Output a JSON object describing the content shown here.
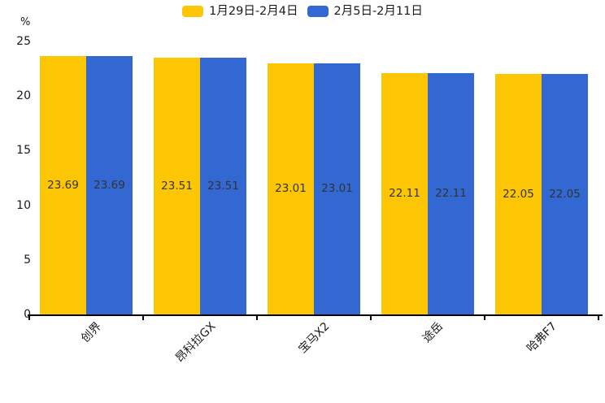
{
  "chart_data": {
    "type": "bar",
    "title": "",
    "unit_label": "%",
    "categories": [
      "创界",
      "昂科拉GX",
      "宝马X2",
      "途岳",
      "哈弗F7"
    ],
    "series": [
      {
        "name": "1月29日-2月4日",
        "color": "#FDC605",
        "values": [
          23.69,
          23.51,
          23.01,
          22.11,
          22.05
        ]
      },
      {
        "name": "2月5日-2月11日",
        "color": "#3367D1",
        "values": [
          23.69,
          23.51,
          23.01,
          22.11,
          22.05
        ]
      }
    ],
    "ylim": [
      0,
      25
    ],
    "yticks": [
      0,
      5,
      10,
      15,
      20,
      25
    ],
    "grid": false,
    "legend_position": "top-center",
    "value_labels_shown": true,
    "value_label_color": "#333333",
    "axis_color": "#000000"
  }
}
